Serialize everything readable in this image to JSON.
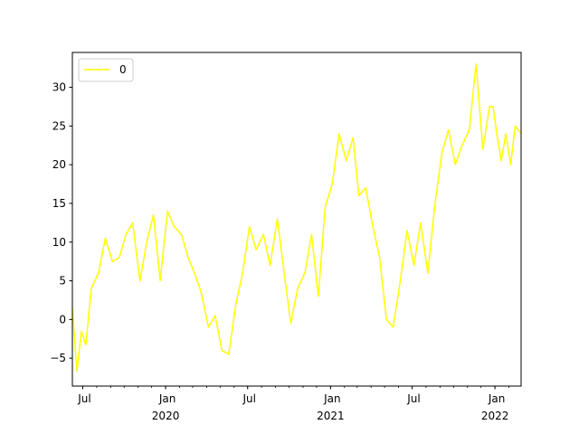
{
  "chart_data": {
    "type": "line",
    "title": "",
    "xlabel": "",
    "ylabel": "",
    "xlim": [
      "2019-06-08",
      "2022-02-28"
    ],
    "ylim": [
      -8.6,
      34.5
    ],
    "grid": false,
    "legend_position": "upper left",
    "series": [
      {
        "name": "0",
        "color": "#ffff00",
        "x": [
          "2019-06-08",
          "2019-06-18",
          "2019-06-28",
          "2019-07-08",
          "2019-07-20",
          "2019-08-05",
          "2019-08-20",
          "2019-09-05",
          "2019-09-20",
          "2019-10-05",
          "2019-10-20",
          "2019-11-05",
          "2019-11-20",
          "2019-12-05",
          "2019-12-20",
          "2020-01-05",
          "2020-01-20",
          "2020-02-05",
          "2020-02-20",
          "2020-03-05",
          "2020-03-20",
          "2020-04-05",
          "2020-04-20",
          "2020-05-05",
          "2020-05-20",
          "2020-06-05",
          "2020-06-20",
          "2020-07-05",
          "2020-07-20",
          "2020-08-05",
          "2020-08-20",
          "2020-09-05",
          "2020-09-20",
          "2020-10-05",
          "2020-10-20",
          "2020-11-05",
          "2020-11-20",
          "2020-12-05",
          "2020-12-20",
          "2021-01-05",
          "2021-01-20",
          "2021-02-05",
          "2021-02-20",
          "2021-03-05",
          "2021-03-20",
          "2021-04-05",
          "2021-04-20",
          "2021-05-05",
          "2021-05-20",
          "2021-06-05",
          "2021-06-20",
          "2021-07-05",
          "2021-07-20",
          "2021-08-05",
          "2021-08-20",
          "2021-09-05",
          "2021-09-20",
          "2021-10-05",
          "2021-10-20",
          "2021-11-05",
          "2021-11-20",
          "2021-12-05",
          "2021-12-20",
          "2021-12-28",
          "2022-01-05",
          "2022-01-15",
          "2022-01-25",
          "2022-02-05",
          "2022-02-15",
          "2022-02-28"
        ],
        "values": [
          1.5,
          -6.7,
          -1.5,
          -3.3,
          4.0,
          6.0,
          10.5,
          7.5,
          8.0,
          11.0,
          12.5,
          5.0,
          10.0,
          13.5,
          5.0,
          14.0,
          12.0,
          11.0,
          8.0,
          6.0,
          3.5,
          -1.0,
          0.5,
          -4.0,
          -4.5,
          2.0,
          6.0,
          12.0,
          9.0,
          11.0,
          7.0,
          13.0,
          6.0,
          -0.5,
          4.0,
          6.0,
          11.0,
          3.0,
          14.5,
          17.5,
          24.0,
          20.5,
          23.5,
          16.0,
          17.0,
          12.0,
          8.0,
          0.0,
          -1.0,
          5.0,
          11.5,
          7.0,
          12.5,
          6.0,
          14.5,
          21.5,
          24.5,
          20.0,
          22.5,
          24.5,
          33.0,
          22.0,
          27.5,
          27.5,
          24.0,
          20.5,
          24.0,
          20.0,
          25.0,
          24.0
        ]
      }
    ],
    "x_ticks": [
      {
        "date": "2019-07-01",
        "label": "Jul",
        "sublabel": ""
      },
      {
        "date": "2020-01-01",
        "label": "Jan",
        "sublabel": "2020"
      },
      {
        "date": "2020-07-01",
        "label": "Jul",
        "sublabel": ""
      },
      {
        "date": "2021-01-01",
        "label": "Jan",
        "sublabel": "2021"
      },
      {
        "date": "2021-07-01",
        "label": "Jul",
        "sublabel": ""
      },
      {
        "date": "2022-01-01",
        "label": "Jan",
        "sublabel": "2022"
      }
    ],
    "y_ticks": [
      -5,
      0,
      5,
      10,
      15,
      20,
      25,
      30
    ]
  },
  "legend": {
    "entries": [
      "0"
    ]
  }
}
